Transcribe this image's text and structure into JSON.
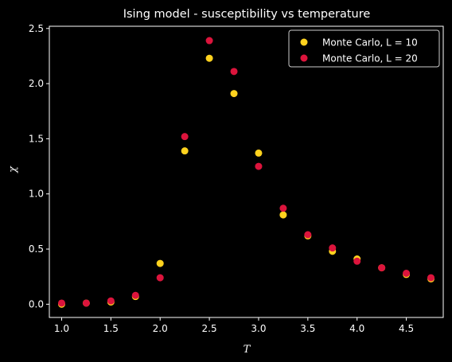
{
  "chart_data": {
    "type": "scatter",
    "title": "Ising model - susceptibility vs temperature",
    "xlabel": "T",
    "ylabel": "χ",
    "xlim": [
      0.875,
      4.875
    ],
    "ylim": [
      -0.12,
      2.52
    ],
    "xticks": [
      1.0,
      1.5,
      2.0,
      2.5,
      3.0,
      3.5,
      4.0,
      4.5
    ],
    "xtick_labels": [
      "1.0",
      "1.5",
      "2.0",
      "2.5",
      "3.0",
      "3.5",
      "4.0",
      "4.5"
    ],
    "yticks": [
      0.0,
      0.5,
      1.0,
      1.5,
      2.0,
      2.5
    ],
    "ytick_labels": [
      "0.0",
      "0.5",
      "1.0",
      "1.5",
      "2.0",
      "2.5"
    ],
    "grid": false,
    "legend_position": "top-right",
    "background": "#000000",
    "foreground": "#ffffff",
    "series": [
      {
        "name": "Monte Carlo, L = 10",
        "color": "#FFD21E",
        "x": [
          1.0,
          1.25,
          1.5,
          1.75,
          2.0,
          2.25,
          2.5,
          2.75,
          3.0,
          3.25,
          3.5,
          3.75,
          4.0,
          4.25,
          4.5,
          4.75
        ],
        "y": [
          0.0,
          0.01,
          0.02,
          0.07,
          0.37,
          1.39,
          2.23,
          1.91,
          1.37,
          0.81,
          0.62,
          0.48,
          0.41,
          0.33,
          0.27,
          0.23
        ]
      },
      {
        "name": "Monte Carlo, L = 20",
        "color": "#DC143C",
        "x": [
          1.0,
          1.25,
          1.5,
          1.75,
          2.0,
          2.25,
          2.5,
          2.75,
          3.0,
          3.25,
          3.5,
          3.75,
          4.0,
          4.25,
          4.5,
          4.75
        ],
        "y": [
          0.01,
          0.01,
          0.03,
          0.08,
          0.24,
          1.52,
          2.39,
          2.11,
          1.25,
          0.87,
          0.63,
          0.51,
          0.39,
          0.33,
          0.28,
          0.24
        ]
      }
    ]
  }
}
